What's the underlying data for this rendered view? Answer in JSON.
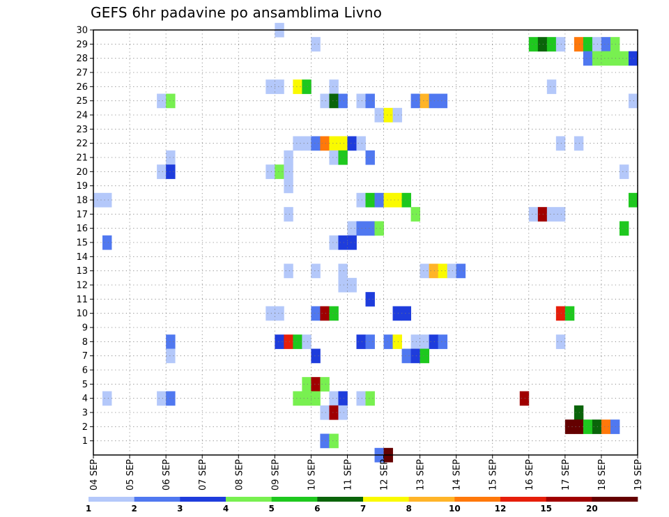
{
  "chart_data": {
    "type": "heatmap",
    "title": "GEFS 6hr padavine po ansamblima Livno",
    "xlabel": "",
    "ylabel": "",
    "x_ticks": [
      "04 SEP",
      "05 SEP",
      "06 SEP",
      "07 SEP",
      "08 SEP",
      "09 SEP",
      "10 SEP",
      "11 SEP",
      "12 SEP",
      "13 SEP",
      "14 SEP",
      "15 SEP",
      "16 SEP",
      "17 SEP",
      "18 SEP",
      "19 SEP"
    ],
    "x_range": [
      "04 SEP 00Z",
      "19 SEP 00Z"
    ],
    "x_step_hours": 6,
    "y_ticks": [
      1,
      2,
      3,
      4,
      5,
      6,
      7,
      8,
      9,
      10,
      11,
      12,
      13,
      14,
      15,
      16,
      17,
      18,
      19,
      20,
      21,
      22,
      23,
      24,
      25,
      26,
      27,
      28,
      29,
      30
    ],
    "y_range": [
      0,
      30
    ],
    "grid": true,
    "legend": {
      "placement": "bottom",
      "labels": [
        "1",
        "2",
        "3",
        "4",
        "5",
        "6",
        "7",
        "8",
        "10",
        "12",
        "15",
        "20"
      ],
      "colors": [
        "#b4c8fa",
        "#5078f0",
        "#1e3cdc",
        "#78f050",
        "#1ec81e",
        "#0a640a",
        "#fafa00",
        "#ffb428",
        "#ff780a",
        "#e61e0a",
        "#a00000",
        "#640000"
      ]
    },
    "cells_member_stepindex_value": [
      [
        30,
        20,
        1
      ],
      [
        29,
        24,
        1
      ],
      [
        29,
        48,
        5
      ],
      [
        29,
        49,
        6
      ],
      [
        29,
        50,
        5
      ],
      [
        29,
        51,
        1
      ],
      [
        29,
        53,
        10
      ],
      [
        29,
        54,
        5
      ],
      [
        29,
        55,
        1
      ],
      [
        29,
        56,
        2
      ],
      [
        29,
        57,
        4
      ],
      [
        28,
        54,
        2
      ],
      [
        28,
        55,
        4
      ],
      [
        28,
        56,
        4
      ],
      [
        28,
        57,
        4
      ],
      [
        28,
        58,
        4
      ],
      [
        28,
        59,
        3
      ],
      [
        26,
        19,
        1
      ],
      [
        26,
        20,
        1
      ],
      [
        26,
        22,
        7
      ],
      [
        26,
        23,
        5
      ],
      [
        26,
        26,
        1
      ],
      [
        26,
        50,
        1
      ],
      [
        25,
        7,
        1
      ],
      [
        25,
        8,
        4
      ],
      [
        25,
        25,
        1
      ],
      [
        25,
        26,
        6
      ],
      [
        25,
        27,
        2
      ],
      [
        25,
        29,
        1
      ],
      [
        25,
        30,
        2
      ],
      [
        25,
        35,
        2
      ],
      [
        25,
        36,
        8
      ],
      [
        25,
        37,
        2
      ],
      [
        25,
        38,
        2
      ],
      [
        25,
        59,
        1
      ],
      [
        24,
        31,
        1
      ],
      [
        24,
        32,
        7
      ],
      [
        24,
        33,
        1
      ],
      [
        22,
        22,
        1
      ],
      [
        22,
        23,
        1
      ],
      [
        22,
        24,
        2
      ],
      [
        22,
        25,
        10
      ],
      [
        22,
        26,
        7
      ],
      [
        22,
        27,
        7
      ],
      [
        22,
        28,
        3
      ],
      [
        22,
        29,
        1
      ],
      [
        22,
        51,
        1
      ],
      [
        22,
        53,
        1
      ],
      [
        21,
        21,
        1
      ],
      [
        21,
        26,
        1
      ],
      [
        21,
        27,
        5
      ],
      [
        21,
        30,
        2
      ],
      [
        21,
        8,
        1
      ],
      [
        20,
        7,
        1
      ],
      [
        20,
        8,
        3
      ],
      [
        20,
        19,
        1
      ],
      [
        20,
        20,
        4
      ],
      [
        20,
        21,
        1
      ],
      [
        20,
        58,
        1
      ],
      [
        19,
        21,
        1
      ],
      [
        18,
        0,
        1
      ],
      [
        18,
        1,
        1
      ],
      [
        18,
        29,
        1
      ],
      [
        18,
        30,
        5
      ],
      [
        18,
        31,
        2
      ],
      [
        18,
        32,
        7
      ],
      [
        18,
        33,
        7
      ],
      [
        18,
        34,
        5
      ],
      [
        18,
        59,
        5
      ],
      [
        17,
        21,
        1
      ],
      [
        17,
        35,
        4
      ],
      [
        17,
        48,
        1
      ],
      [
        17,
        49,
        15
      ],
      [
        17,
        50,
        1
      ],
      [
        17,
        51,
        1
      ],
      [
        16,
        28,
        1
      ],
      [
        16,
        29,
        2
      ],
      [
        16,
        30,
        2
      ],
      [
        16,
        31,
        4
      ],
      [
        16,
        58,
        5
      ],
      [
        15,
        1,
        2
      ],
      [
        15,
        26,
        1
      ],
      [
        15,
        27,
        3
      ],
      [
        15,
        28,
        3
      ],
      [
        13,
        21,
        1
      ],
      [
        13,
        24,
        1
      ],
      [
        13,
        27,
        1
      ],
      [
        13,
        36,
        1
      ],
      [
        13,
        37,
        8
      ],
      [
        13,
        38,
        7
      ],
      [
        13,
        39,
        1
      ],
      [
        13,
        40,
        2
      ],
      [
        12,
        27,
        1
      ],
      [
        12,
        28,
        1
      ],
      [
        11,
        30,
        3
      ],
      [
        10,
        19,
        1
      ],
      [
        10,
        20,
        1
      ],
      [
        10,
        24,
        2
      ],
      [
        10,
        25,
        15
      ],
      [
        10,
        26,
        5
      ],
      [
        10,
        33,
        3
      ],
      [
        10,
        34,
        3
      ],
      [
        10,
        51,
        12
      ],
      [
        10,
        52,
        5
      ],
      [
        8,
        8,
        2
      ],
      [
        8,
        20,
        3
      ],
      [
        8,
        21,
        12
      ],
      [
        8,
        22,
        5
      ],
      [
        8,
        23,
        1
      ],
      [
        8,
        29,
        3
      ],
      [
        8,
        30,
        2
      ],
      [
        8,
        32,
        2
      ],
      [
        8,
        33,
        7
      ],
      [
        8,
        35,
        1
      ],
      [
        8,
        36,
        1
      ],
      [
        8,
        37,
        3
      ],
      [
        8,
        38,
        2
      ],
      [
        8,
        51,
        1
      ],
      [
        7,
        8,
        1
      ],
      [
        7,
        24,
        3
      ],
      [
        7,
        34,
        2
      ],
      [
        7,
        35,
        3
      ],
      [
        7,
        36,
        5
      ],
      [
        5,
        23,
        4
      ],
      [
        5,
        24,
        15
      ],
      [
        5,
        25,
        4
      ],
      [
        4,
        1,
        1
      ],
      [
        4,
        7,
        1
      ],
      [
        4,
        8,
        2
      ],
      [
        4,
        22,
        4
      ],
      [
        4,
        23,
        4
      ],
      [
        4,
        24,
        4
      ],
      [
        4,
        26,
        1
      ],
      [
        4,
        27,
        3
      ],
      [
        4,
        29,
        1
      ],
      [
        4,
        30,
        4
      ],
      [
        4,
        47,
        15
      ],
      [
        3,
        25,
        1
      ],
      [
        3,
        26,
        15
      ],
      [
        3,
        27,
        1
      ],
      [
        3,
        53,
        6
      ],
      [
        2,
        52,
        20
      ],
      [
        2,
        53,
        20
      ],
      [
        2,
        54,
        5
      ],
      [
        2,
        55,
        6
      ],
      [
        2,
        56,
        10
      ],
      [
        2,
        57,
        2
      ],
      [
        1,
        25,
        2
      ],
      [
        1,
        26,
        4
      ],
      [
        0,
        31,
        2
      ],
      [
        0,
        32,
        20
      ]
    ]
  }
}
